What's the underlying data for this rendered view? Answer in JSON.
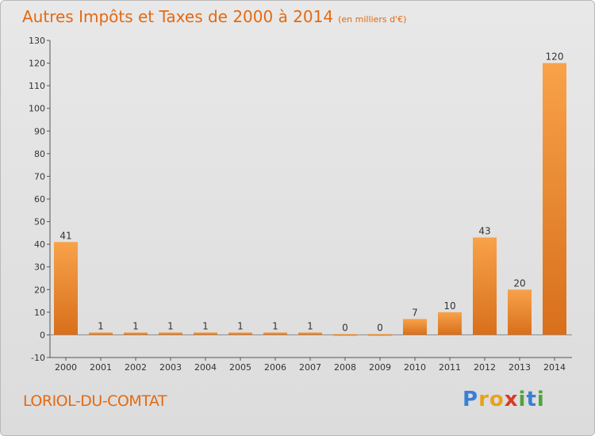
{
  "header": {
    "title": "Autres Impôts et Taxes de 2000 à 2014",
    "subtitle": "(en milliers d'€)"
  },
  "footer": {
    "commune": "LORIOL-DU-COMTAT",
    "logo_letters": [
      {
        "ch": "P",
        "color": "#3b7fd4"
      },
      {
        "ch": "r",
        "color": "#e8a21c"
      },
      {
        "ch": "o",
        "color": "#e8a21c"
      },
      {
        "ch": "x",
        "color": "#d93a2b"
      },
      {
        "ch": "i",
        "color": "#4fa33c"
      },
      {
        "ch": "t",
        "color": "#3b7fd4"
      },
      {
        "ch": "i",
        "color": "#4fa33c"
      }
    ]
  },
  "colors": {
    "bar_light": "#f8a24a",
    "bar_dark": "#d86f1b",
    "accent": "#e36a12"
  },
  "chart_data": {
    "type": "bar",
    "categories": [
      "2000",
      "2001",
      "2002",
      "2003",
      "2004",
      "2005",
      "2006",
      "2007",
      "2008",
      "2009",
      "2010",
      "2011",
      "2012",
      "2013",
      "2014"
    ],
    "values": [
      41,
      1,
      1,
      1,
      1,
      1,
      1,
      1,
      0,
      0,
      7,
      10,
      43,
      20,
      120
    ],
    "labels": [
      "41",
      "1",
      "1",
      "1",
      "1",
      "1",
      "1",
      "1",
      "0",
      "0",
      "7",
      "10",
      "43",
      "20",
      "120"
    ],
    "ylim": [
      -10,
      130
    ],
    "yticks": [
      -10,
      0,
      10,
      20,
      30,
      40,
      50,
      60,
      70,
      80,
      90,
      100,
      110,
      120,
      130
    ],
    "grid": false,
    "legend": "none"
  }
}
